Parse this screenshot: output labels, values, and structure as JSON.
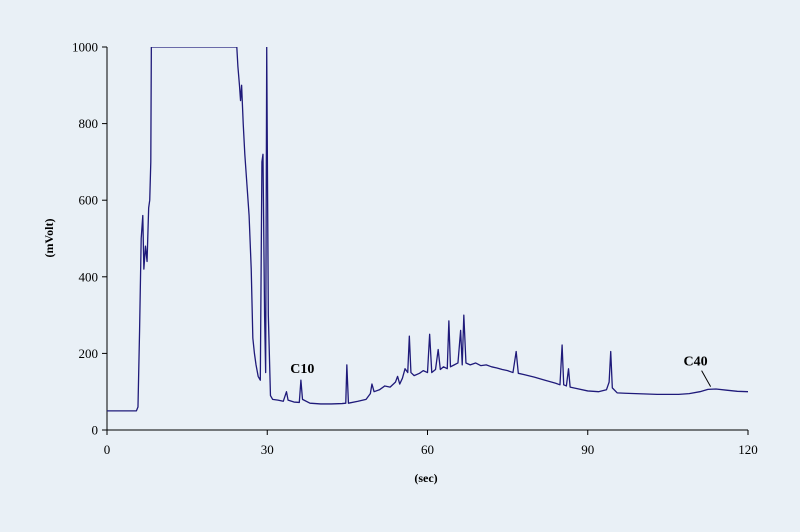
{
  "chart_data": {
    "type": "line",
    "title": "",
    "xlabel": "(sec)",
    "ylabel": "(mVolt)",
    "xlim": [
      0,
      120
    ],
    "ylim": [
      0,
      1000
    ],
    "x_ticks": [
      0,
      30,
      60,
      90,
      120
    ],
    "y_ticks": [
      0,
      200,
      400,
      600,
      800,
      1000
    ],
    "grid": false,
    "legend": "none",
    "line_color": "#1f1a7a",
    "background_color": "#e9f0f6",
    "annotations": [
      {
        "text": "C10",
        "x": 36.2,
        "y": 130
      },
      {
        "text": "C40",
        "x": 113,
        "y": 108
      }
    ],
    "series": [
      {
        "values": [
          [
            0,
            50
          ],
          [
            5.5,
            50
          ],
          [
            5.8,
            60
          ],
          [
            6.1,
            260
          ],
          [
            6.4,
            500
          ],
          [
            6.7,
            560
          ],
          [
            6.9,
            420
          ],
          [
            7.2,
            480
          ],
          [
            7.5,
            440
          ],
          [
            7.8,
            580
          ],
          [
            8.0,
            600
          ],
          [
            8.2,
            700
          ],
          [
            8.3,
            1000
          ],
          [
            24.3,
            1000
          ],
          [
            24.5,
            950
          ],
          [
            24.8,
            900
          ],
          [
            25.0,
            860
          ],
          [
            25.2,
            900
          ],
          [
            25.5,
            800
          ],
          [
            25.8,
            720
          ],
          [
            26.2,
            640
          ],
          [
            26.6,
            560
          ],
          [
            27.0,
            420
          ],
          [
            27.3,
            240
          ],
          [
            27.6,
            200
          ],
          [
            27.9,
            170
          ],
          [
            28.3,
            140
          ],
          [
            28.7,
            130
          ],
          [
            29.0,
            700
          ],
          [
            29.2,
            720
          ],
          [
            29.5,
            300
          ],
          [
            29.7,
            150
          ],
          [
            29.9,
            1000
          ],
          [
            30.2,
            300
          ],
          [
            30.6,
            90
          ],
          [
            31.0,
            80
          ],
          [
            32.0,
            78
          ],
          [
            33.0,
            75
          ],
          [
            33.6,
            100
          ],
          [
            33.9,
            78
          ],
          [
            35.0,
            73
          ],
          [
            36.0,
            72
          ],
          [
            36.3,
            130
          ],
          [
            36.6,
            80
          ],
          [
            38.0,
            70
          ],
          [
            40.0,
            68
          ],
          [
            42.0,
            68
          ],
          [
            44.0,
            69
          ],
          [
            44.7,
            70
          ],
          [
            44.9,
            170
          ],
          [
            45.2,
            70
          ],
          [
            47.0,
            75
          ],
          [
            48.5,
            80
          ],
          [
            49.3,
            95
          ],
          [
            49.6,
            120
          ],
          [
            50.0,
            100
          ],
          [
            51.0,
            105
          ],
          [
            52.0,
            115
          ],
          [
            53.0,
            112
          ],
          [
            54.0,
            125
          ],
          [
            54.4,
            140
          ],
          [
            54.8,
            120
          ],
          [
            55.3,
            135
          ],
          [
            55.8,
            160
          ],
          [
            56.3,
            150
          ],
          [
            56.6,
            245
          ],
          [
            56.9,
            150
          ],
          [
            57.5,
            142
          ],
          [
            58.5,
            148
          ],
          [
            59.2,
            155
          ],
          [
            60.0,
            150
          ],
          [
            60.4,
            250
          ],
          [
            60.8,
            150
          ],
          [
            61.5,
            158
          ],
          [
            62.0,
            210
          ],
          [
            62.4,
            158
          ],
          [
            63.0,
            165
          ],
          [
            63.7,
            160
          ],
          [
            64.0,
            285
          ],
          [
            64.3,
            165
          ],
          [
            65.0,
            170
          ],
          [
            65.7,
            175
          ],
          [
            66.2,
            260
          ],
          [
            66.5,
            170
          ],
          [
            66.8,
            300
          ],
          [
            67.2,
            175
          ],
          [
            68.0,
            170
          ],
          [
            69.0,
            175
          ],
          [
            70.0,
            168
          ],
          [
            71.0,
            170
          ],
          [
            72.0,
            165
          ],
          [
            73.0,
            162
          ],
          [
            74.0,
            158
          ],
          [
            75.0,
            155
          ],
          [
            76.0,
            150
          ],
          [
            76.6,
            205
          ],
          [
            77.0,
            148
          ],
          [
            78.0,
            145
          ],
          [
            80.0,
            138
          ],
          [
            82.0,
            130
          ],
          [
            84.0,
            122
          ],
          [
            84.8,
            118
          ],
          [
            85.2,
            222
          ],
          [
            85.5,
            118
          ],
          [
            86.0,
            115
          ],
          [
            86.4,
            160
          ],
          [
            86.7,
            112
          ],
          [
            88.0,
            108
          ],
          [
            90.0,
            102
          ],
          [
            92.0,
            100
          ],
          [
            93.5,
            105
          ],
          [
            94.0,
            125
          ],
          [
            94.3,
            205
          ],
          [
            94.6,
            110
          ],
          [
            95.5,
            97
          ],
          [
            97.0,
            96
          ],
          [
            99.0,
            95
          ],
          [
            101.0,
            94
          ],
          [
            103.0,
            93
          ],
          [
            105.0,
            93
          ],
          [
            107.0,
            93
          ],
          [
            109.0,
            95
          ],
          [
            111.0,
            100
          ],
          [
            112.5,
            106
          ],
          [
            114.0,
            107
          ],
          [
            116.0,
            104
          ],
          [
            118.0,
            101
          ],
          [
            120.0,
            100
          ]
        ]
      }
    ]
  }
}
